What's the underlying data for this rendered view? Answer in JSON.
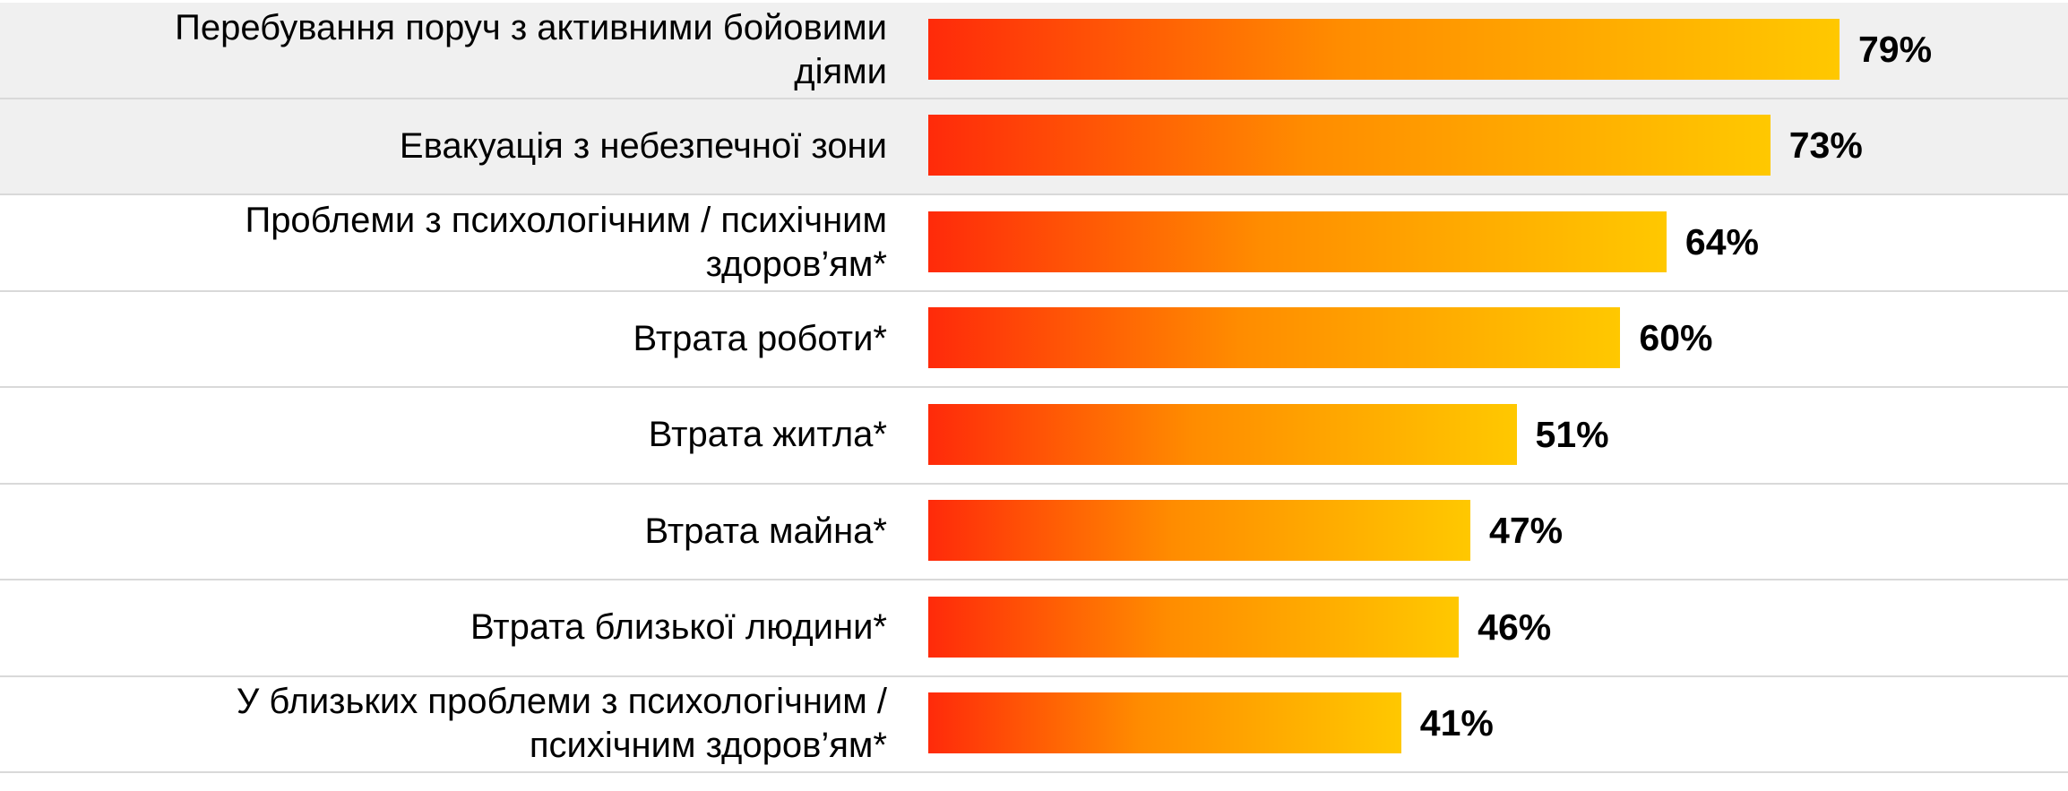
{
  "chart_data": {
    "type": "bar",
    "orientation": "horizontal",
    "categories": [
      "Перебування поруч з активними бойовими\nдіями",
      "Евакуація з небезпечної зони",
      "Проблеми з психологічним / психічним\nздоров’ям*",
      "Втрата роботи*",
      "Втрата житла*",
      "Втрата майна*",
      "Втрата близької людини*",
      "У близьких проблеми з психологічним /\nпсихічним здоров’ям*"
    ],
    "values": [
      79,
      73,
      64,
      60,
      51,
      47,
      46,
      41
    ],
    "value_labels": [
      "79%",
      "73%",
      "64%",
      "60%",
      "51%",
      "47%",
      "46%",
      "41%"
    ],
    "unit": "%",
    "shaded_rows": [
      0,
      1
    ],
    "bar_gradient": [
      "#ff2a0a",
      "#ff8c00",
      "#ffc800"
    ],
    "title": "",
    "xlabel": "",
    "ylabel": "",
    "xlim": [
      0,
      100
    ],
    "grid": false,
    "legend": "none"
  }
}
